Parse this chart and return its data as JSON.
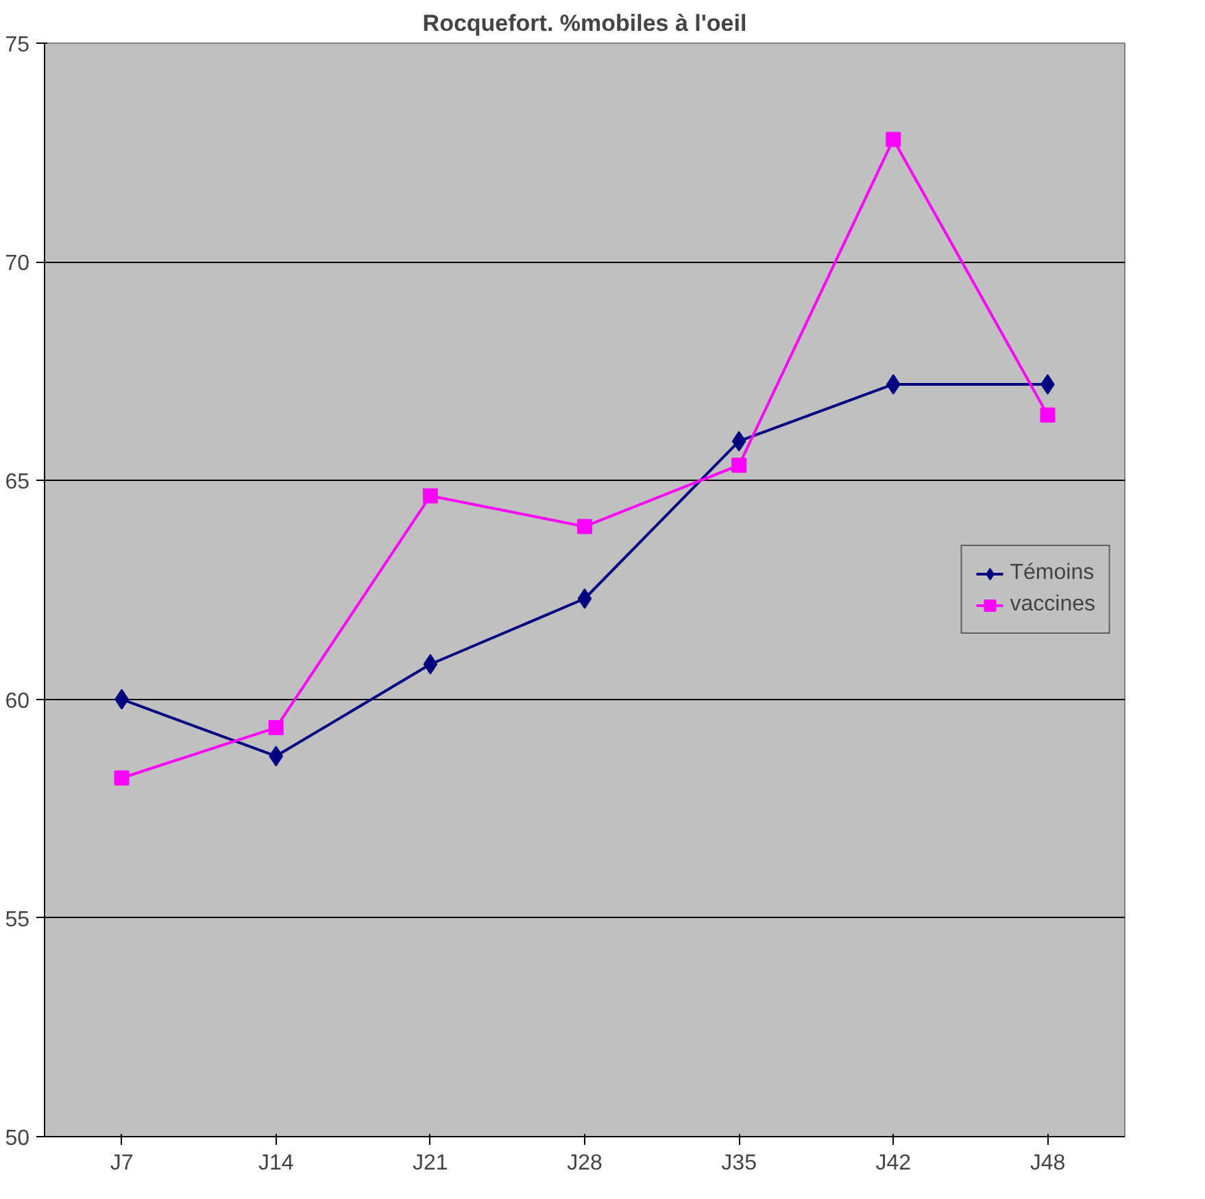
{
  "chart_data": {
    "type": "line",
    "title": "Rocquefort. %mobiles à l'oeil",
    "categories": [
      "J7",
      "J14",
      "J21",
      "J28",
      "J35",
      "J42",
      "J48"
    ],
    "series": [
      {
        "name": "Témoins",
        "color": "#000080",
        "marker": "diamond",
        "values": [
          60.0,
          58.7,
          60.8,
          62.3,
          65.9,
          67.2,
          67.2
        ]
      },
      {
        "name": "vaccines",
        "color": "#ff00ff",
        "marker": "square",
        "values": [
          58.2,
          59.35,
          64.65,
          63.95,
          65.35,
          72.8,
          66.5
        ]
      }
    ],
    "ylim": [
      50,
      75
    ],
    "yticks": [
      50,
      55,
      60,
      65,
      70,
      75
    ],
    "grid": "y",
    "legend": "right",
    "line_style": "solid"
  }
}
